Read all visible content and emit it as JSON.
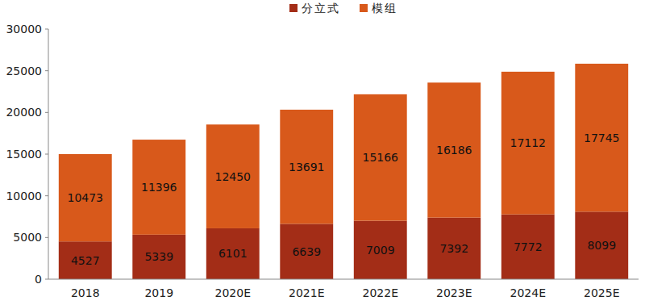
{
  "chart_data": {
    "type": "bar",
    "stacked": true,
    "data_labels": true,
    "grid": false,
    "legend": "top",
    "categories": [
      "2018",
      "2019",
      "2020E",
      "2021E",
      "2022E",
      "2023E",
      "2024E",
      "2025E"
    ],
    "series": [
      {
        "name": "分立式",
        "color": "#a32d17",
        "values": [
          4527,
          5339,
          6101,
          6639,
          7009,
          7392,
          7772,
          8099
        ]
      },
      {
        "name": "模组",
        "color": "#d8591b",
        "values": [
          10473,
          11396,
          12450,
          13691,
          15166,
          16186,
          17112,
          17745
        ]
      }
    ],
    "ylim": [
      0,
      30000
    ],
    "yticks": [
      0,
      5000,
      10000,
      15000,
      20000,
      25000,
      30000
    ]
  }
}
